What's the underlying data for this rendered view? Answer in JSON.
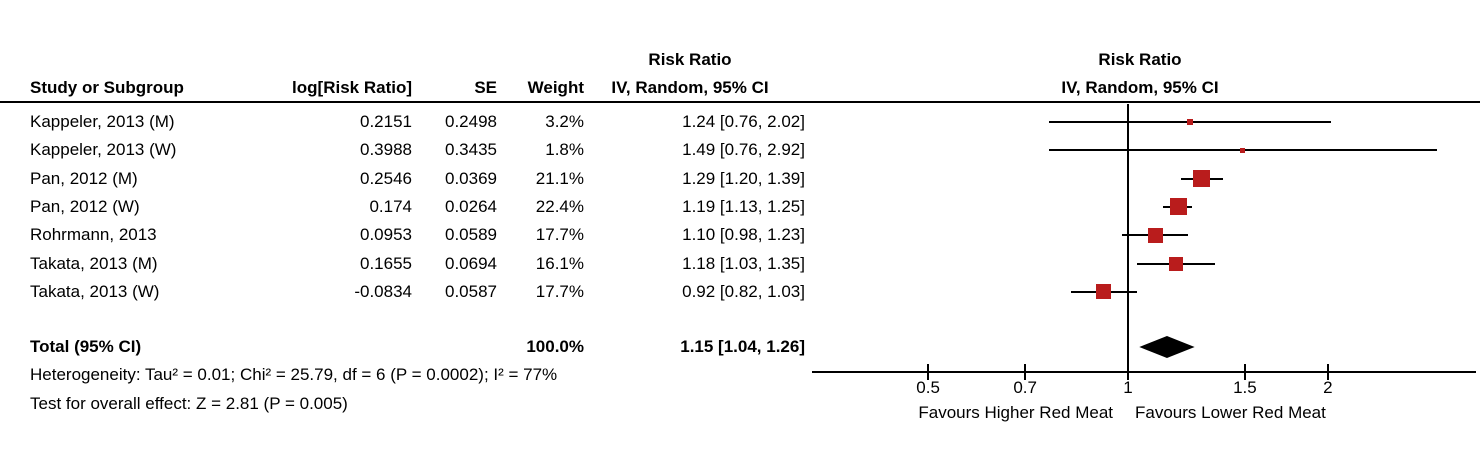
{
  "table": {
    "headers": {
      "study": "Study or Subgroup",
      "log_rr": "log[Risk Ratio]",
      "se": "SE",
      "weight": "Weight",
      "stats_line1": "Risk Ratio",
      "stats_line2": "IV, Random, 95% CI",
      "plot_line1": "Risk Ratio",
      "plot_line2": "IV, Random, 95% CI"
    }
  },
  "chart_data": {
    "type": "forest",
    "effect_measure": "Risk Ratio",
    "model": "IV, Random, 95% CI",
    "studies": [
      {
        "name": "Kappeler, 2013 (M)",
        "log_rr": "0.2151",
        "se": "0.2498",
        "weight": "3.2%",
        "weight_value": 3.2,
        "rr": 1.24,
        "ci_low": 0.76,
        "ci_high": 2.02,
        "ci_text": "1.24 [0.76, 2.02]"
      },
      {
        "name": "Kappeler, 2013 (W)",
        "log_rr": "0.3988",
        "se": "0.3435",
        "weight": "1.8%",
        "weight_value": 1.8,
        "rr": 1.49,
        "ci_low": 0.76,
        "ci_high": 2.92,
        "ci_text": "1.49 [0.76, 2.92]"
      },
      {
        "name": "Pan, 2012 (M)",
        "log_rr": "0.2546",
        "se": "0.0369",
        "weight": "21.1%",
        "weight_value": 21.1,
        "rr": 1.29,
        "ci_low": 1.2,
        "ci_high": 1.39,
        "ci_text": "1.29 [1.20, 1.39]"
      },
      {
        "name": "Pan, 2012 (W)",
        "log_rr": "0.174",
        "se": "0.0264",
        "weight": "22.4%",
        "weight_value": 22.4,
        "rr": 1.19,
        "ci_low": 1.13,
        "ci_high": 1.25,
        "ci_text": "1.19 [1.13, 1.25]"
      },
      {
        "name": "Rohrmann, 2013",
        "log_rr": "0.0953",
        "se": "0.0589",
        "weight": "17.7%",
        "weight_value": 17.7,
        "rr": 1.1,
        "ci_low": 0.98,
        "ci_high": 1.23,
        "ci_text": "1.10 [0.98, 1.23]"
      },
      {
        "name": "Takata, 2013 (M)",
        "log_rr": "0.1655",
        "se": "0.0694",
        "weight": "16.1%",
        "weight_value": 16.1,
        "rr": 1.18,
        "ci_low": 1.03,
        "ci_high": 1.35,
        "ci_text": "1.18 [1.03, 1.35]"
      },
      {
        "name": "Takata, 2013 (W)",
        "log_rr": "-0.0834",
        "se": "0.0587",
        "weight": "17.7%",
        "weight_value": 17.7,
        "rr": 0.92,
        "ci_low": 0.82,
        "ci_high": 1.03,
        "ci_text": "0.92 [0.82, 1.03]"
      }
    ],
    "total": {
      "label": "Total (95% CI)",
      "weight": "100.0%",
      "rr": 1.15,
      "ci_low": 1.04,
      "ci_high": 1.26,
      "ci_text": "1.15 [1.04, 1.26]"
    },
    "heterogeneity": "Heterogeneity: Tau² = 0.01; Chi² = 25.79, df = 6 (P = 0.0002); I² = 77%",
    "overall_effect": "Test for overall effect: Z = 2.81 (P = 0.005)",
    "axis": {
      "scale": "log",
      "ticks": [
        0.5,
        0.7,
        1,
        1.5,
        2
      ],
      "center": 1
    },
    "xlabel_left": "Favours Higher Red Meat",
    "xlabel_right": "Favours Lower Red Meat",
    "marker_color": "#B91C1C",
    "line_color": "#000000"
  }
}
